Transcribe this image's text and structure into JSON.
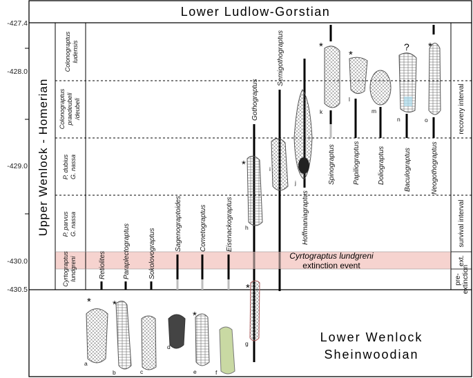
{
  "title_top": "Lower Ludlow-Gorstian",
  "left_axis_title": "Upper Wenlock - Homerian",
  "y_ticks": [
    "-427.4",
    "-428.0",
    "-429.0",
    "-430.0",
    "-430.5"
  ],
  "zones": [
    {
      "lines": [
        "Colonograptus",
        "ludensis"
      ]
    },
    {
      "lines": [
        "Colonograptus",
        "praedeubeli",
        "/deubeli"
      ]
    },
    {
      "lines": [
        "P. dubius",
        "G. nassa"
      ]
    },
    {
      "lines": [
        "P. parvus",
        "G. nassa"
      ]
    },
    {
      "lines": [
        "Cyrtograptus",
        "lundgreni"
      ]
    }
  ],
  "genera": {
    "retiolites": "Retiolites",
    "paraplectograptus": "Paraplectograptus",
    "sokolovograptus": "Sokolovograptus",
    "sagenograptoides": "Sagenograptoides",
    "cometograptus": "Cometograptus",
    "eisenackograptus": "Eisenackograptus",
    "gothograptus": "Gothograptus",
    "semigothograptus": "Semigothograptus",
    "hoffmaniagraptus": "Hoffmaniagraptus",
    "spinograptus": "Spinograptus",
    "papiliograptus": "Papiliograptus",
    "doliograptus": "Doliograptus",
    "baculograptus": "Baculograptus",
    "neogothograptus": "Neogothograptus"
  },
  "extinction": {
    "line1": "Cyrtograptus lundgreni",
    "line2": "extinction event"
  },
  "intervals": {
    "recovery": "recovery interval",
    "survival": "survival interval",
    "ext": "ext.",
    "pre": [
      "pre-",
      "extinction"
    ]
  },
  "bottom_title": [
    "Lower Wenlock",
    "Sheinwoodian"
  ],
  "specimen_letters": [
    "a",
    "b",
    "c",
    "d",
    "e",
    "f",
    "g",
    "h",
    "i",
    "j",
    "k",
    "l",
    "m",
    "n",
    "o"
  ],
  "asterisk": "*",
  "question_mark": "?",
  "colors": {
    "extinction_band": "#f6d3cf",
    "line": "#000000",
    "grey_segment": "#bdbdbd",
    "fossil": "#555555"
  }
}
